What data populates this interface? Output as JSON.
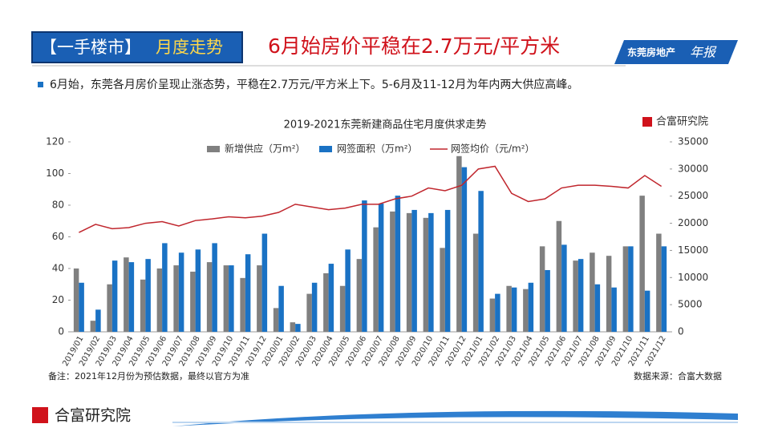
{
  "header": {
    "section": "【一手楼市】",
    "section_sub": "月度走势",
    "headline": "6月始房价平稳在2.7万元/平方米",
    "badge": "东莞房地产",
    "badge_sub": "年报"
  },
  "bullet": "6月始，东莞各月房价呈现止涨态势，平稳在2.7万元/平方米上下。5-6月及11-12月为年内两大供应高峰。",
  "brand": "合富研究院",
  "footnote": "备注：2021年12月份为预估数据，最终以官方为准",
  "source": "数据来源：合富大数据",
  "footer_brand": "合富研究院",
  "chart_data": {
    "type": "bar",
    "title": "2019-2021东莞新建商品住宅月度供求走势",
    "categories": [
      "2019/01",
      "2019/02",
      "2019/03",
      "2019/04",
      "2019/05",
      "2019/06",
      "2019/07",
      "2019/08",
      "2019/09",
      "2019/10",
      "2019/11",
      "2019/12",
      "2020/01",
      "2020/02",
      "2020/03",
      "2020/04",
      "2020/05",
      "2020/06",
      "2020/07",
      "2020/08",
      "2020/09",
      "2020/10",
      "2020/11",
      "2020/12",
      "2021/01",
      "2021/02",
      "2021/03",
      "2021/04",
      "2021/05",
      "2021/06",
      "2021/07",
      "2021/08",
      "2021/09",
      "2021/10",
      "2021/11",
      "2021/12"
    ],
    "series": [
      {
        "name": "新增供应（万m²）",
        "color": "#808080",
        "values": [
          40,
          7,
          30,
          47,
          33,
          40,
          42,
          38,
          44,
          42,
          34,
          42,
          15,
          6,
          24,
          37,
          29,
          46,
          66,
          76,
          75,
          72,
          53,
          111,
          62,
          21,
          29,
          27,
          54,
          70,
          45,
          50,
          48,
          54,
          86,
          62
        ]
      },
      {
        "name": "网签面积（万m²）",
        "color": "#1a72c4",
        "values": [
          31,
          14,
          45,
          44,
          46,
          56,
          50,
          52,
          56,
          42,
          49,
          62,
          29,
          5,
          31,
          43,
          52,
          83,
          81,
          86,
          77,
          75,
          77,
          104,
          89,
          24,
          28,
          31,
          39,
          55,
          46,
          30,
          28,
          54,
          26,
          54
        ]
      },
      {
        "name": "网签均价（元/m²）",
        "color": "#c0262d",
        "type": "line",
        "axis": "y2",
        "values": [
          18300,
          19800,
          19000,
          19200,
          20000,
          20300,
          19500,
          20500,
          20800,
          21200,
          21000,
          21300,
          22000,
          23500,
          23000,
          22500,
          22800,
          23500,
          23500,
          24500,
          25000,
          26500,
          26000,
          27000,
          30000,
          30500,
          25500,
          24000,
          24500,
          26500,
          27000,
          27000,
          26800,
          26500,
          28800,
          26800
        ]
      }
    ],
    "ylim": [
      0,
      120
    ],
    "yticks": [
      0,
      20,
      40,
      60,
      80,
      100,
      120
    ],
    "y2lim": [
      0,
      35000
    ],
    "y2ticks": [
      0,
      5000,
      10000,
      15000,
      20000,
      25000,
      30000,
      35000
    ],
    "legend": "top"
  }
}
